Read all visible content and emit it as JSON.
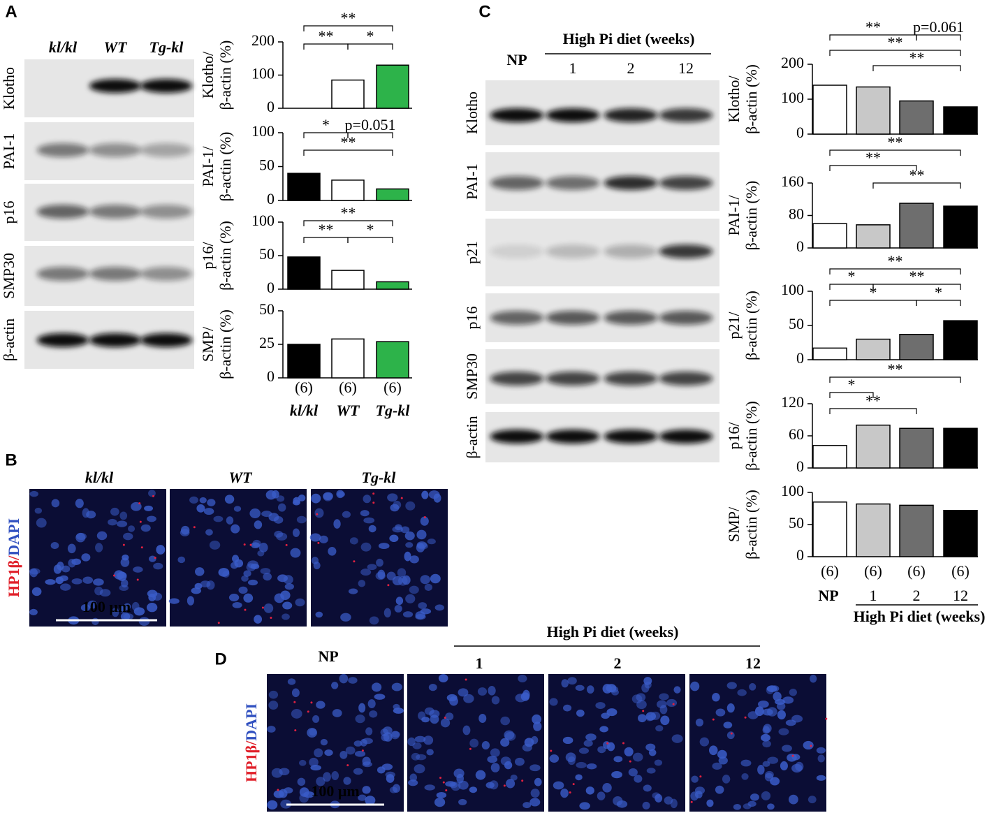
{
  "panel_labels": [
    "A",
    "B",
    "C",
    "D"
  ],
  "blot_a": {
    "lanes": [
      "kl/kl",
      "WT",
      "Tg-kl"
    ],
    "rows": [
      "Klotho",
      "PAI-1",
      "p16",
      "SMP30",
      "β-actin"
    ]
  },
  "blot_c": {
    "lanes": [
      "NP",
      "1",
      "2",
      "12"
    ],
    "group_label": "High Pi diet (weeks)",
    "rows": [
      "Klotho",
      "PAI-1",
      "p21",
      "p16",
      "SMP30",
      "β-actin"
    ]
  },
  "images_b": {
    "labels": [
      "kl/kl",
      "WT",
      "Tg-kl"
    ],
    "stain": {
      "marker": "HP1β",
      "separator": "/",
      "counterstain": "DAPI"
    },
    "scale_bar": "100 μm"
  },
  "images_d": {
    "labels": [
      "NP",
      "1",
      "2",
      "12"
    ],
    "group_label": "High Pi diet (weeks)",
    "stain": {
      "marker": "HP1β",
      "separator": "/",
      "counterstain": "DAPI"
    },
    "scale_bar": "100 μm"
  },
  "chart_data": [
    {
      "type": "bar",
      "ylabel": [
        "Klotho/",
        "β-actin (%)"
      ],
      "categories": [
        null,
        null,
        null
      ],
      "values": [
        0,
        85,
        130
      ],
      "colors": [
        "#000000",
        "#ffffff",
        "#2db34a"
      ],
      "ylim": [
        0,
        200
      ],
      "yticks": [
        0,
        100,
        200
      ],
      "annotations": [
        "**",
        "**",
        "*"
      ]
    },
    {
      "type": "bar",
      "ylabel": [
        "PAI-1/",
        "β-actin (%)"
      ],
      "categories": [
        null,
        null,
        null
      ],
      "values": [
        40,
        30,
        17
      ],
      "colors": [
        "#000000",
        "#ffffff",
        "#2db34a"
      ],
      "ylim": [
        0,
        100
      ],
      "yticks": [
        0,
        50,
        100
      ],
      "annotations": [
        "*",
        "p=0.051",
        "**"
      ]
    },
    {
      "type": "bar",
      "ylabel": [
        "p16/",
        "β-actin (%)"
      ],
      "categories": [
        null,
        null,
        null
      ],
      "values": [
        48,
        28,
        11
      ],
      "colors": [
        "#000000",
        "#ffffff",
        "#2db34a"
      ],
      "ylim": [
        0,
        100
      ],
      "yticks": [
        0,
        50,
        100
      ],
      "annotations": [
        "**",
        "**",
        "*"
      ]
    },
    {
      "type": "bar",
      "ylabel": [
        "SMP/",
        "β-actin (%)"
      ],
      "n_labels": [
        "(6)",
        "(6)",
        "(6)"
      ],
      "categories": [
        "kl/kl",
        "WT",
        "Tg-kl"
      ],
      "values": [
        25,
        29,
        27
      ],
      "colors": [
        "#000000",
        "#ffffff",
        "#2db34a"
      ],
      "ylim": [
        0,
        50
      ],
      "yticks": [
        0,
        25,
        50
      ],
      "annotations": []
    },
    {
      "type": "bar",
      "ylabel": [
        "Klotho/",
        "β-actin (%)"
      ],
      "categories": [
        null,
        null,
        null,
        null
      ],
      "values": [
        140,
        135,
        95,
        78
      ],
      "colors": [
        "#ffffff",
        "#c8c8c8",
        "#6e6e6e",
        "#000000"
      ],
      "ylim": [
        0,
        200
      ],
      "yticks": [
        0,
        100,
        200
      ],
      "annotations": [
        "**",
        "p=0.061",
        "**",
        "**"
      ]
    },
    {
      "type": "bar",
      "ylabel": [
        "PAI-1/",
        "β-actin (%)"
      ],
      "categories": [
        null,
        null,
        null,
        null
      ],
      "values": [
        60,
        57,
        110,
        103
      ],
      "colors": [
        "#ffffff",
        "#c8c8c8",
        "#6e6e6e",
        "#000000"
      ],
      "ylim": [
        0,
        160
      ],
      "yticks": [
        0,
        80,
        160
      ],
      "annotations": [
        "**",
        "**",
        "**"
      ]
    },
    {
      "type": "bar",
      "ylabel": [
        "p21/",
        "β-actin (%)"
      ],
      "categories": [
        null,
        null,
        null,
        null
      ],
      "values": [
        17,
        30,
        37,
        57
      ],
      "colors": [
        "#ffffff",
        "#c8c8c8",
        "#6e6e6e",
        "#000000"
      ],
      "ylim": [
        0,
        100
      ],
      "yticks": [
        0,
        50,
        100
      ],
      "annotations": [
        "**",
        "*",
        "**",
        "*",
        "*"
      ]
    },
    {
      "type": "bar",
      "ylabel": [
        "p16/",
        "β-actin (%)"
      ],
      "categories": [
        null,
        null,
        null,
        null
      ],
      "values": [
        42,
        80,
        74,
        74
      ],
      "colors": [
        "#ffffff",
        "#c8c8c8",
        "#6e6e6e",
        "#000000"
      ],
      "ylim": [
        0,
        120
      ],
      "yticks": [
        0,
        60,
        120
      ],
      "annotations": [
        "**",
        "*",
        "**"
      ]
    },
    {
      "type": "bar",
      "ylabel": [
        "SMP/",
        "β-actin (%)"
      ],
      "n_labels": [
        "(6)",
        "(6)",
        "(6)",
        "(6)"
      ],
      "categories": [
        "NP",
        "1",
        "2",
        "12"
      ],
      "xlabel": "High Pi diet (weeks)",
      "values": [
        85,
        82,
        80,
        72
      ],
      "colors": [
        "#ffffff",
        "#c8c8c8",
        "#6e6e6e",
        "#000000"
      ],
      "ylim": [
        0,
        100
      ],
      "yticks": [
        0,
        50,
        100
      ],
      "annotations": []
    }
  ]
}
